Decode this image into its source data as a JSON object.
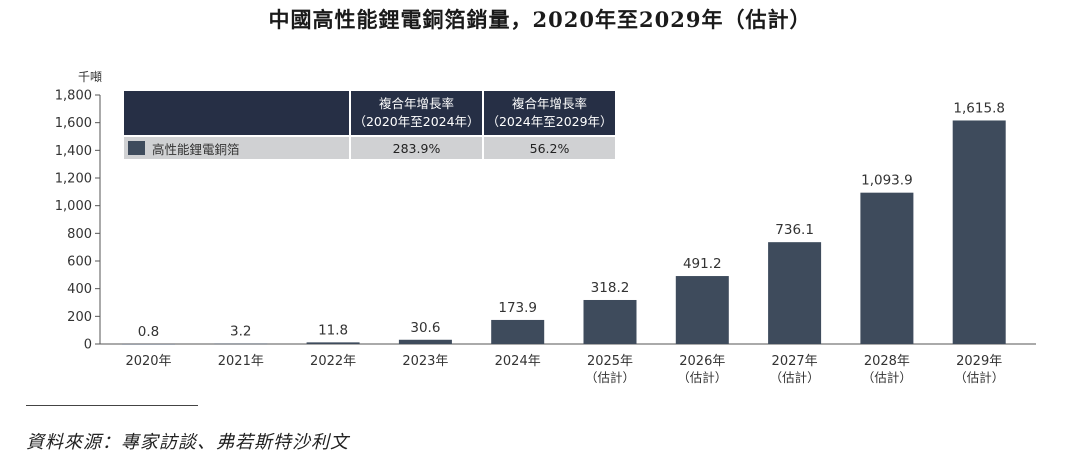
{
  "chart_data": {
    "type": "bar",
    "title": "中國高性能鋰電銅箔銷量，2020年至2029年（估計）",
    "ylabel": "千噸",
    "xlabel": "",
    "ylim": [
      0,
      1800
    ],
    "yticks": [
      "0",
      "200",
      "400",
      "600",
      "800",
      "1,000",
      "1,200",
      "1,400",
      "1,600",
      "1,800"
    ],
    "ytick_values": [
      0,
      200,
      400,
      600,
      800,
      1000,
      1200,
      1400,
      1600,
      1800
    ],
    "categories": [
      {
        "year": "2020年",
        "note": ""
      },
      {
        "year": "2021年",
        "note": ""
      },
      {
        "year": "2022年",
        "note": ""
      },
      {
        "year": "2023年",
        "note": ""
      },
      {
        "year": "2024年",
        "note": ""
      },
      {
        "year": "2025年",
        "note": "（估計）"
      },
      {
        "year": "2026年",
        "note": "（估計）"
      },
      {
        "year": "2027年",
        "note": "（估計）"
      },
      {
        "year": "2028年",
        "note": "（估計）"
      },
      {
        "year": "2029年",
        "note": "（估計）"
      }
    ],
    "values": [
      0.8,
      3.2,
      11.8,
      30.6,
      173.9,
      318.2,
      491.2,
      736.1,
      1093.9,
      1615.8
    ],
    "value_labels": [
      "0.8",
      "3.2",
      "11.8",
      "30.6",
      "173.9",
      "318.2",
      "491.2",
      "736.1",
      "1,093.9",
      "1,615.8"
    ],
    "series_name": "高性能鋰電銅箔",
    "bar_color": "#3e4b5c",
    "grid": false
  },
  "legend_table": {
    "col1_header_line1": "複合年增長率",
    "col1_header_line2": "（2020年至2024年）",
    "col2_header_line1": "複合年增長率",
    "col2_header_line2": "（2024年至2029年）",
    "row_label": "高性能鋰電銅箔",
    "cagr_2020_2024": "283.9%",
    "cagr_2024_2029": "56.2%"
  },
  "source_text": "資料來源：專家訪談、弗若斯特沙利文"
}
